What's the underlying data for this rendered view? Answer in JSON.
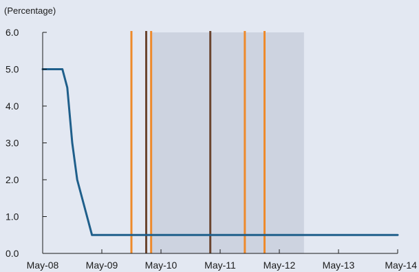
{
  "chart_data": {
    "type": "line",
    "title": "",
    "unit_label": "(Percentage)",
    "xlabel": "",
    "ylabel": "",
    "x_ticks": [
      "May-08",
      "May-09",
      "May-10",
      "May-11",
      "May-12",
      "May-13",
      "May-14"
    ],
    "x_tick_dates": [
      "2008-05",
      "2009-05",
      "2010-05",
      "2011-05",
      "2012-05",
      "2013-05",
      "2014-05"
    ],
    "xlim": [
      "2008-05",
      "2014-05"
    ],
    "y_ticks": [
      "0.0",
      "1.0",
      "2.0",
      "3.0",
      "4.0",
      "5.0",
      "6.0"
    ],
    "y_tick_values": [
      0,
      1,
      2,
      3,
      4,
      5,
      6
    ],
    "ylim": [
      0,
      6
    ],
    "grid": false,
    "legend": "none",
    "series": [
      {
        "color": "#1f5f8b",
        "points": [
          {
            "x": "2008-05",
            "y": 5.0
          },
          {
            "x": "2008-09",
            "y": 5.0
          },
          {
            "x": "2008-10",
            "y": 4.5
          },
          {
            "x": "2008-11",
            "y": 3.0
          },
          {
            "x": "2008-12",
            "y": 2.0
          },
          {
            "x": "2009-03",
            "y": 0.5
          },
          {
            "x": "2014-05",
            "y": 0.5
          }
        ]
      }
    ],
    "shaded_region": {
      "start": "2010-03",
      "end": "2012-10",
      "ymin": 0,
      "ymax": 6,
      "color": "#cdd3e0"
    },
    "vertical_lines": [
      {
        "x": "2009-11",
        "color": "#ee8a2b"
      },
      {
        "x": "2010-02",
        "color": "#6b4631"
      },
      {
        "x": "2010-03",
        "color": "#ee8a2b"
      },
      {
        "x": "2011-03",
        "color": "#6b4631"
      },
      {
        "x": "2011-10",
        "color": "#ee8a2b"
      },
      {
        "x": "2012-02",
        "color": "#ee8a2b"
      }
    ],
    "colors": {
      "background": "#e3e8f2",
      "axis": "#1a1a1a",
      "text": "#1a1a1a"
    }
  }
}
